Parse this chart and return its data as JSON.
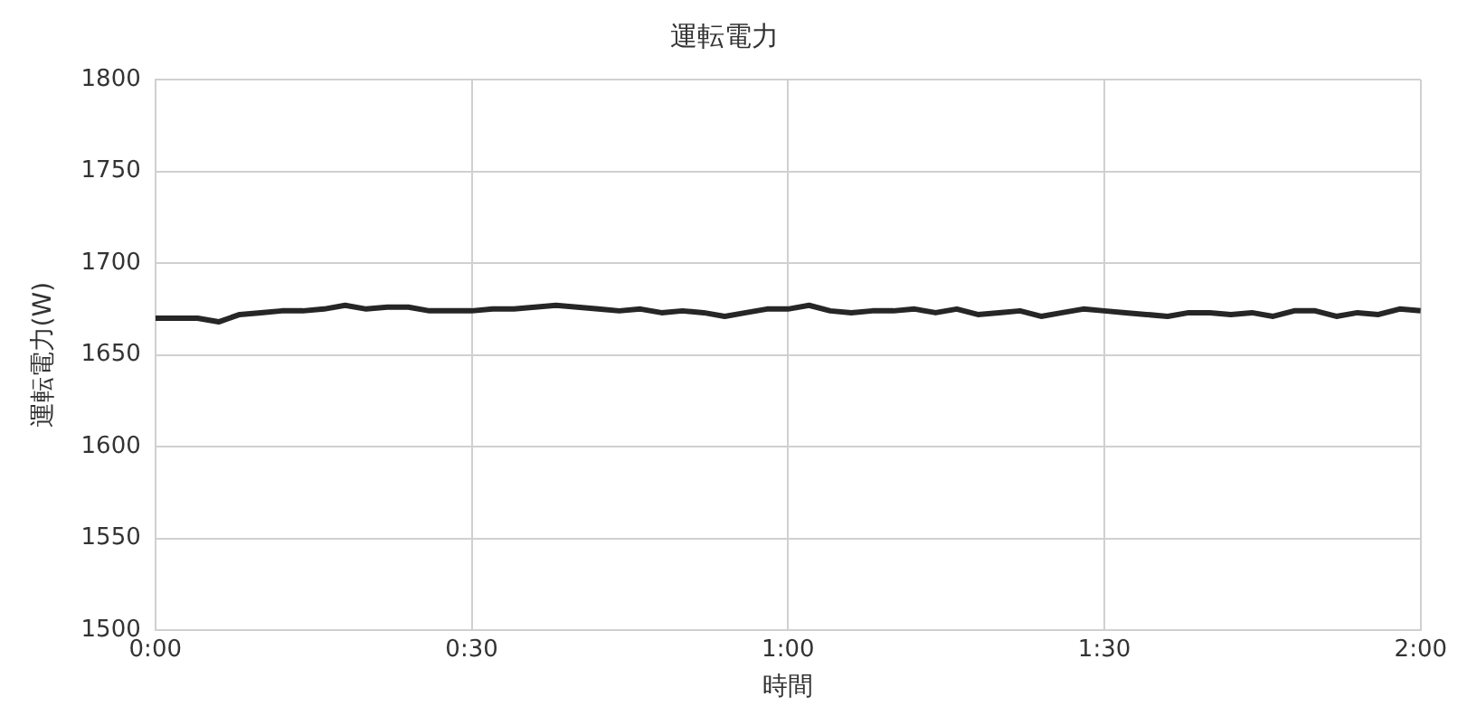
{
  "chart_data": {
    "type": "line",
    "title": "運転電力",
    "xlabel": "時間",
    "ylabel": "運転電力(W)",
    "x": [
      0,
      0.0333,
      0.0667,
      0.1,
      0.1333,
      0.1667,
      0.2,
      0.2333,
      0.2667,
      0.3,
      0.3333,
      0.3667,
      0.4,
      0.4333,
      0.4667,
      0.5,
      0.5333,
      0.5667,
      0.6,
      0.6333,
      0.6667,
      0.7,
      0.7333,
      0.7667,
      0.8,
      0.8333,
      0.8667,
      0.9,
      0.9333,
      0.9667,
      1,
      1.0333,
      1.0667,
      1.1,
      1.1333,
      1.1667,
      1.2,
      1.2333,
      1.2667,
      1.3,
      1.3333,
      1.3667,
      1.4,
      1.4333,
      1.4667,
      1.5,
      1.5333,
      1.5667,
      1.6,
      1.6333,
      1.6667,
      1.7,
      1.7333,
      1.7667,
      1.8,
      1.8333,
      1.8667,
      1.9,
      1.9333,
      1.9667,
      2
    ],
    "series": [
      {
        "color": "#262626",
        "values": [
          1670,
          1670,
          1670,
          1668,
          1672,
          1673,
          1674,
          1674,
          1675,
          1677,
          1675,
          1676,
          1676,
          1674,
          1674,
          1674,
          1675,
          1675,
          1676,
          1677,
          1676,
          1675,
          1674,
          1675,
          1673,
          1674,
          1673,
          1671,
          1673,
          1675,
          1675,
          1677,
          1674,
          1673,
          1674,
          1674,
          1675,
          1673,
          1675,
          1672,
          1673,
          1674,
          1671,
          1673,
          1675,
          1674,
          1673,
          1672,
          1671,
          1673,
          1673,
          1672,
          1673,
          1671,
          1674,
          1674,
          1671,
          1673,
          1672,
          1675,
          1674
        ]
      }
    ],
    "xlim": [
      0,
      2
    ],
    "xticks": [
      {
        "value": 0,
        "label": "0:00"
      },
      {
        "value": 0.5,
        "label": "0:30"
      },
      {
        "value": 1,
        "label": "1:00"
      },
      {
        "value": 1.5,
        "label": "1:30"
      },
      {
        "value": 2,
        "label": "2:00"
      }
    ],
    "ylim": [
      1500,
      1800
    ],
    "yticks": [
      1500,
      1550,
      1600,
      1650,
      1700,
      1750,
      1800
    ],
    "grid": true,
    "legend": false,
    "marker": "none",
    "line_style": "solid"
  }
}
